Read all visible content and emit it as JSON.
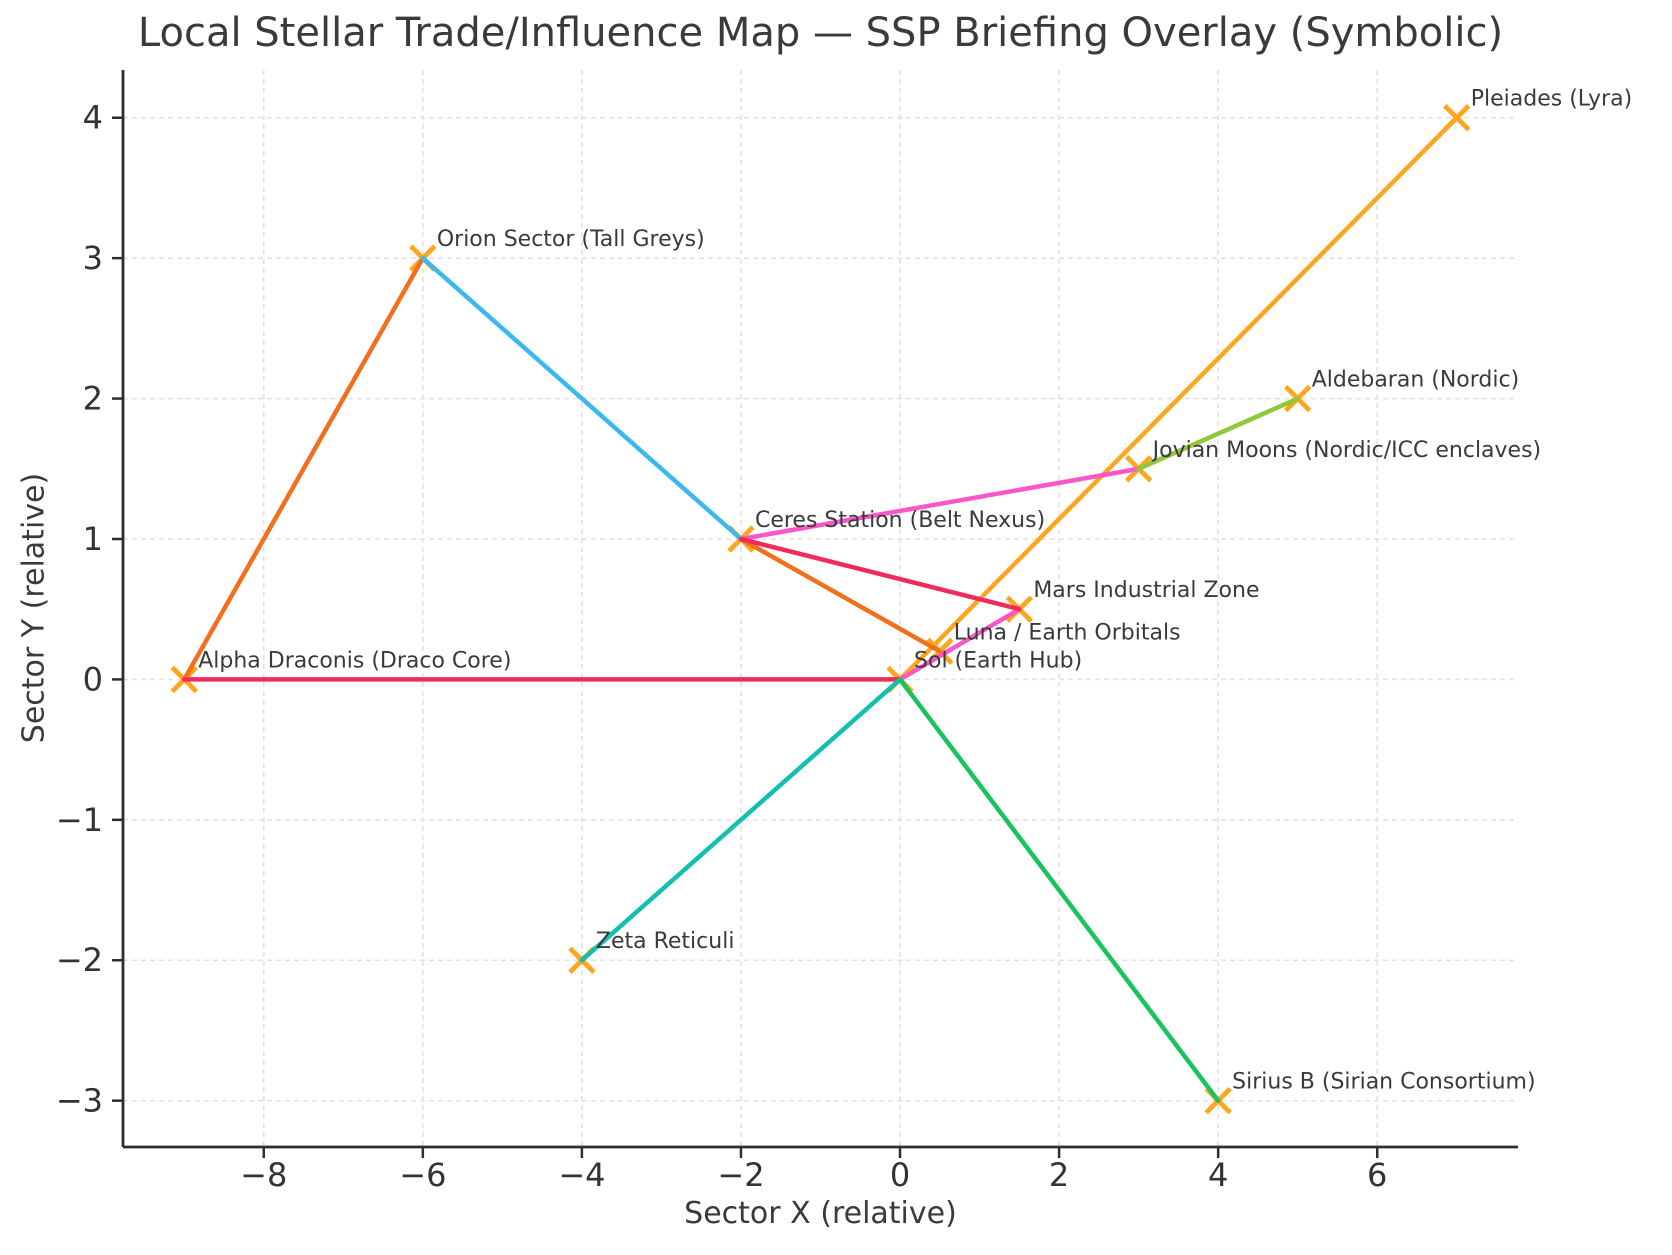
{
  "chart_data": {
    "type": "scatter",
    "title": "Local Stellar Trade/Influence Map — SSP Briefing Overlay (Symbolic)",
    "xlabel": "Sector X (relative)",
    "ylabel": "Sector Y (relative)",
    "xlim": [
      -9.77,
      7.77
    ],
    "ylim": [
      -3.33,
      4.34
    ],
    "xticks": [
      -8,
      -6,
      -4,
      -2,
      0,
      2,
      4,
      6
    ],
    "xtick_labels": [
      "−8",
      "−6",
      "−4",
      "−2",
      "0",
      "2",
      "4",
      "6"
    ],
    "yticks": [
      -3,
      -2,
      -1,
      0,
      1,
      2,
      3,
      4
    ],
    "ytick_labels": [
      "−3",
      "−2",
      "−1",
      "0",
      "1",
      "2",
      "3",
      "4"
    ],
    "grid": true,
    "legend": "none",
    "marker": {
      "shape": "x",
      "color": "#FFA51E",
      "half_size": 12,
      "stroke_width": 4.8
    },
    "nodes": [
      {
        "name": "Sol (Earth Hub)",
        "x": 0,
        "y": 0
      },
      {
        "name": "Luna / Earth Orbitals",
        "x": 0.5,
        "y": 0.2
      },
      {
        "name": "Mars Industrial Zone",
        "x": 1.5,
        "y": 0.5
      },
      {
        "name": "Ceres Station (Belt Nexus)",
        "x": -2,
        "y": 1
      },
      {
        "name": "Jovian Moons (Nordic/ICC enclaves)",
        "x": 3,
        "y": 1.5
      },
      {
        "name": "Orion Sector (Tall Greys)",
        "x": -6,
        "y": 3
      },
      {
        "name": "Zeta Reticuli",
        "x": -4,
        "y": -2
      },
      {
        "name": "Sirius B (Sirian Consortium)",
        "x": 4,
        "y": -3
      },
      {
        "name": "Aldebaran (Nordic)",
        "x": 5,
        "y": 2
      },
      {
        "name": "Pleiades (Lyra)",
        "x": 7,
        "y": 4
      },
      {
        "name": "Alpha Draconis (Draco Core)",
        "x": -9,
        "y": 0
      }
    ],
    "edges": [
      {
        "from": "Sol (Earth Hub)",
        "to": "Pleiades (Lyra)",
        "color": "#FFA51E"
      },
      {
        "from": "Alpha Draconis (Draco Core)",
        "to": "Orion Sector (Tall Greys)",
        "color": "#F2701D"
      },
      {
        "from": "Ceres Station (Belt Nexus)",
        "to": "Luna / Earth Orbitals",
        "color": "#F2701D"
      },
      {
        "from": "Orion Sector (Tall Greys)",
        "to": "Ceres Station (Belt Nexus)",
        "color": "#3BB9EE"
      },
      {
        "from": "Ceres Station (Belt Nexus)",
        "to": "Jovian Moons (Nordic/ICC enclaves)",
        "color": "#F957C8"
      },
      {
        "from": "Sol (Earth Hub)",
        "to": "Mars Industrial Zone",
        "color": "#F957C8"
      },
      {
        "from": "Jovian Moons (Nordic/ICC enclaves)",
        "to": "Aldebaran (Nordic)",
        "color": "#8FC93A"
      },
      {
        "from": "Ceres Station (Belt Nexus)",
        "to": "Mars Industrial Zone",
        "color": "#F02B5C"
      },
      {
        "from": "Alpha Draconis (Draco Core)",
        "to": "Sol (Earth Hub)",
        "color": "#F02B5C"
      },
      {
        "from": "Sol (Earth Hub)",
        "to": "Zeta Reticuli",
        "color": "#13BFB1"
      },
      {
        "from": "Sol (Earth Hub)",
        "to": "Sirius B (Sirian Consortium)",
        "color": "#1AC35E"
      }
    ],
    "style": {
      "grid_color": "#e2e2e2",
      "spine_color": "#2e2e2e",
      "tick_color": "#2e2e2e",
      "edge_width": 4.5,
      "background": "#ffffff"
    }
  }
}
